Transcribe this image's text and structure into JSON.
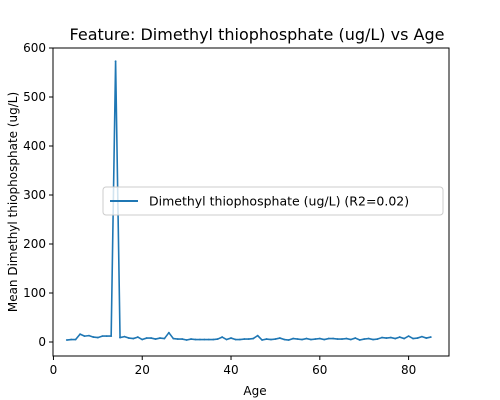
{
  "chart_data": {
    "type": "line",
    "title": "Feature: Dimethyl thiophosphate (ug/L) vs Age",
    "xlabel": "Age",
    "ylabel": "Mean Dimethyl thiophosphate (ug/L)",
    "xlim": [
      -0.1,
      89.1
    ],
    "ylim": [
      -28.6,
      600
    ],
    "xticks": [
      0,
      20,
      40,
      60,
      80
    ],
    "yticks": [
      0,
      100,
      200,
      300,
      400,
      500,
      600
    ],
    "legend_position": "center-right",
    "grid": false,
    "series": [
      {
        "name": "Dimethyl thiophosphate (ug/L) (R2=0.02)",
        "color": "#1f77b4",
        "x": [
          3,
          4,
          5,
          6,
          7,
          8,
          9,
          10,
          11,
          12,
          13,
          14,
          15,
          16,
          17,
          18,
          19,
          20,
          21,
          22,
          23,
          24,
          25,
          26,
          27,
          28,
          29,
          30,
          31,
          32,
          33,
          34,
          35,
          36,
          37,
          38,
          39,
          40,
          41,
          42,
          43,
          44,
          45,
          46,
          47,
          48,
          49,
          50,
          51,
          52,
          53,
          54,
          55,
          56,
          57,
          58,
          59,
          60,
          61,
          62,
          63,
          64,
          65,
          66,
          67,
          68,
          69,
          70,
          71,
          72,
          73,
          74,
          75,
          76,
          77,
          78,
          79,
          80,
          81,
          82,
          83,
          84,
          85
        ],
        "y": [
          4,
          5,
          5,
          16,
          12,
          13,
          10,
          9,
          12,
          12,
          12,
          573,
          9,
          11,
          8,
          7,
          10,
          5,
          8,
          8,
          6,
          8,
          7,
          19,
          7,
          6,
          6,
          4,
          6,
          5,
          5,
          5,
          5,
          5,
          6,
          10,
          5,
          8,
          5,
          5,
          6,
          6,
          7,
          13,
          4,
          6,
          5,
          6,
          8,
          5,
          4,
          7,
          6,
          5,
          7,
          5,
          6,
          7,
          5,
          7,
          7,
          6,
          6,
          7,
          5,
          8,
          4,
          6,
          7,
          5,
          6,
          9,
          8,
          9,
          7,
          10,
          7,
          12,
          7,
          8,
          11,
          8,
          10
        ]
      }
    ]
  }
}
